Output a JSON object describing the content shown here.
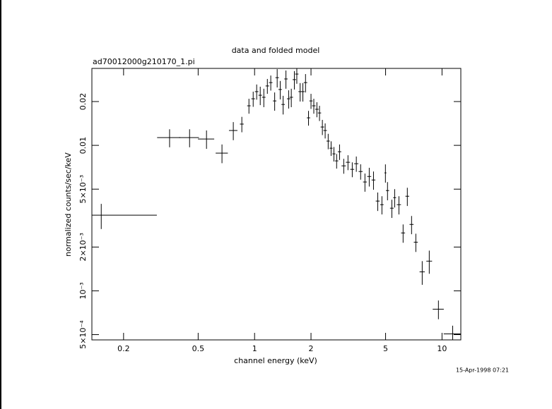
{
  "chart_data": {
    "type": "errorbar",
    "title": "data and folded model",
    "subtitle": "ad70012000g210170_1.pi",
    "x_label": "channel energy (keV)",
    "y_label": "normalized counts/sec/keV",
    "timestamp": "15-Apr-1998 07:21",
    "xscale": "log",
    "yscale": "log",
    "xlim": [
      0.1355,
      12.6
    ],
    "ylim": [
      0.00046,
      0.0338
    ],
    "xticks": [
      0.2,
      0.5,
      1,
      2,
      5,
      10
    ],
    "yticks": [
      {
        "value": 0.02,
        "label": "0.02"
      },
      {
        "value": 0.01,
        "label": "0.01"
      },
      {
        "value": 0.005,
        "label": "5×10⁻³"
      },
      {
        "value": 0.002,
        "label": "2×10⁻³"
      },
      {
        "value": 0.001,
        "label": "10⁻³"
      },
      {
        "value": 0.0005,
        "label": "5×10⁻⁴"
      }
    ],
    "color": "#000000",
    "x": [
      0.152,
      0.352,
      0.45,
      0.554,
      0.67,
      0.77,
      0.855,
      0.933,
      0.983,
      1.026,
      1.072,
      1.12,
      1.17,
      1.22,
      1.28,
      1.32,
      1.37,
      1.42,
      1.47,
      1.52,
      1.57,
      1.63,
      1.68,
      1.75,
      1.81,
      1.87,
      1.94,
      2.0,
      2.07,
      2.15,
      2.22,
      2.3,
      2.38,
      2.47,
      2.56,
      2.65,
      2.74,
      2.84,
      2.99,
      3.15,
      3.32,
      3.49,
      3.68,
      3.88,
      4.09,
      4.31,
      4.54,
      4.78,
      4.99,
      5.12,
      5.4,
      5.59,
      5.89,
      6.2,
      6.53,
      6.88,
      7.25,
      7.84,
      8.55,
      9.57,
      11.4
    ],
    "xerr": [
      0.149,
      0.05,
      0.055,
      0.055,
      0.05,
      0.04,
      0.02,
      0.02,
      0.022,
      0.022,
      0.023,
      0.024,
      0.025,
      0.026,
      0.027,
      0.028,
      0.029,
      0.03,
      0.031,
      0.032,
      0.033,
      0.034,
      0.035,
      0.037,
      0.038,
      0.04,
      0.04,
      0.04,
      0.045,
      0.045,
      0.045,
      0.05,
      0.05,
      0.05,
      0.05,
      0.05,
      0.055,
      0.06,
      0.08,
      0.08,
      0.08,
      0.09,
      0.09,
      0.09,
      0.1,
      0.1,
      0.11,
      0.1,
      0.06,
      0.1,
      0.12,
      0.1,
      0.15,
      0.15,
      0.15,
      0.17,
      0.18,
      0.25,
      0.3,
      0.65,
      1.2
    ],
    "values": [
      0.00331,
      0.0113,
      0.0113,
      0.01106,
      0.00884,
      0.01265,
      0.014,
      0.0187,
      0.0209,
      0.0234,
      0.0221,
      0.0214,
      0.0256,
      0.027,
      0.0202,
      0.0292,
      0.0242,
      0.0191,
      0.0286,
      0.0209,
      0.0214,
      0.0283,
      0.0309,
      0.0234,
      0.0234,
      0.027,
      0.01546,
      0.0202,
      0.0187,
      0.0177,
      0.0167,
      0.01337,
      0.01265,
      0.0107,
      0.00956,
      0.00874,
      0.00782,
      0.00904,
      0.00723,
      0.00765,
      0.00684,
      0.00748,
      0.00661,
      0.0056,
      0.00611,
      0.00578,
      0.00414,
      0.00391,
      0.00647,
      0.00489,
      0.0037,
      0.00437,
      0.00391,
      0.0025,
      0.00447,
      0.00286,
      0.00216,
      0.00135,
      0.0016,
      0.000748,
      0.000506
    ],
    "yerr": [
      0.00065,
      0.0016,
      0.0016,
      0.0016,
      0.0013,
      0.0018,
      0.0017,
      0.0022,
      0.0025,
      0.0028,
      0.0032,
      0.0031,
      0.003,
      0.0032,
      0.0029,
      0.0042,
      0.0035,
      0.0028,
      0.0041,
      0.003,
      0.0031,
      0.0041,
      0.0044,
      0.0034,
      0.0034,
      0.0039,
      0.0018,
      0.0024,
      0.0022,
      0.0021,
      0.002,
      0.0016,
      0.0015,
      0.0013,
      0.0011,
      0.001,
      0.0009,
      0.0011,
      0.00085,
      0.0009,
      0.0008,
      0.0009,
      0.0008,
      0.0008,
      0.0009,
      0.00083,
      0.0006,
      0.00056,
      0.00093,
      0.0007,
      0.00053,
      0.00063,
      0.00056,
      0.00036,
      0.00064,
      0.00041,
      0.00031,
      0.00025,
      0.00029,
      0.00011,
      7e-05
    ]
  }
}
